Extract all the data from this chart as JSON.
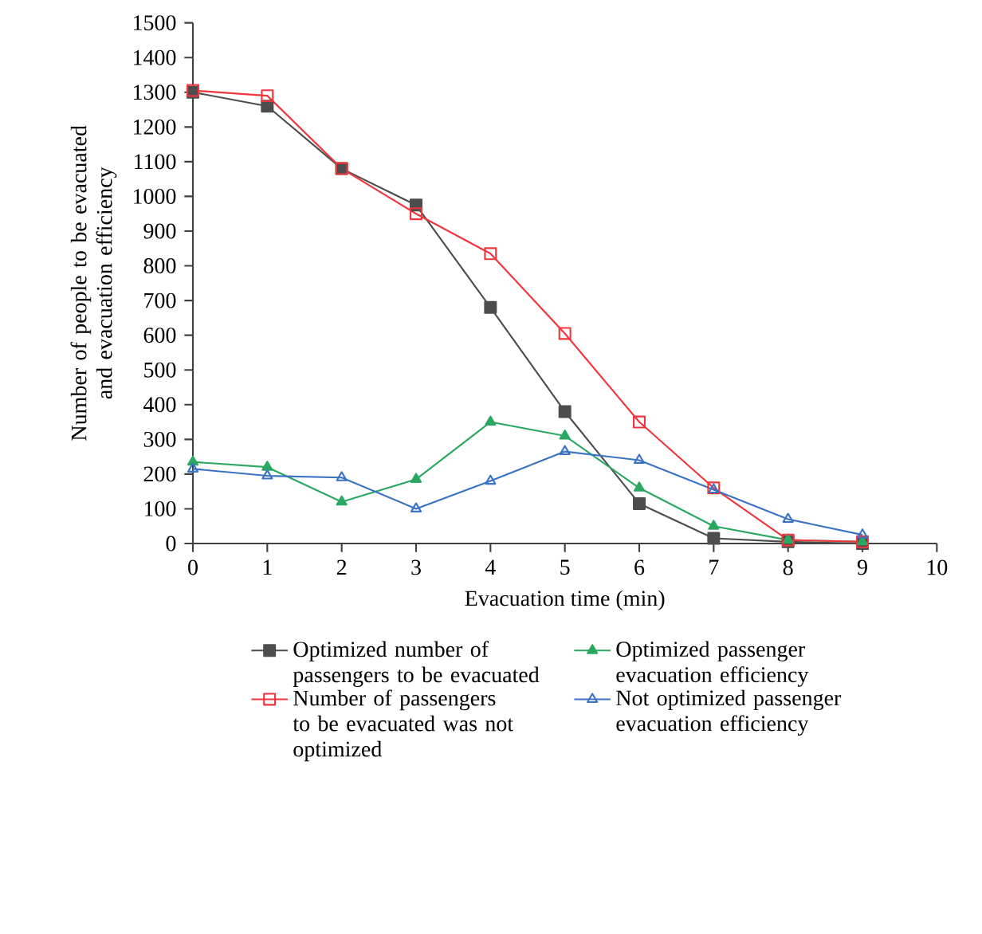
{
  "chart_data": {
    "type": "line",
    "xlabel": "Evacuation time (min)",
    "ylabel": "Number of people to be evacuated and evacuation efficiency",
    "x": [
      0,
      1,
      2,
      3,
      4,
      5,
      6,
      7,
      8,
      9
    ],
    "xlim": [
      0,
      10
    ],
    "xticks": [
      0,
      1,
      2,
      3,
      4,
      5,
      6,
      7,
      8,
      9,
      10
    ],
    "ylim": [
      0,
      1500
    ],
    "yticks": [
      0,
      100,
      200,
      300,
      400,
      500,
      600,
      700,
      800,
      900,
      1000,
      1100,
      1200,
      1300,
      1400,
      1500
    ],
    "grid": false,
    "legend": "bottom",
    "line_style": "solid",
    "series": [
      {
        "name": "Optimized number of passengers to be evacuated",
        "color": "#4d4d4d",
        "marker": "square",
        "values": [
          1300,
          1260,
          1080,
          975,
          680,
          380,
          115,
          15,
          5,
          0
        ]
      },
      {
        "name": "Optimized passenger evacuation efficiency",
        "color": "#2aa862",
        "marker": "triangle",
        "values": [
          235,
          220,
          120,
          185,
          350,
          310,
          160,
          50,
          10,
          5
        ]
      },
      {
        "name": "Number of passengers to be evacuated was not optimized",
        "color": "#f0353c",
        "marker": "square",
        "values": [
          1305,
          1290,
          1080,
          950,
          835,
          605,
          350,
          160,
          10,
          5
        ]
      },
      {
        "name": "Not optimized passenger evacuation efficiency",
        "color": "#3a72c4",
        "marker": "triangle",
        "values": [
          215,
          195,
          190,
          100,
          180,
          265,
          240,
          155,
          70,
          25
        ]
      }
    ]
  }
}
